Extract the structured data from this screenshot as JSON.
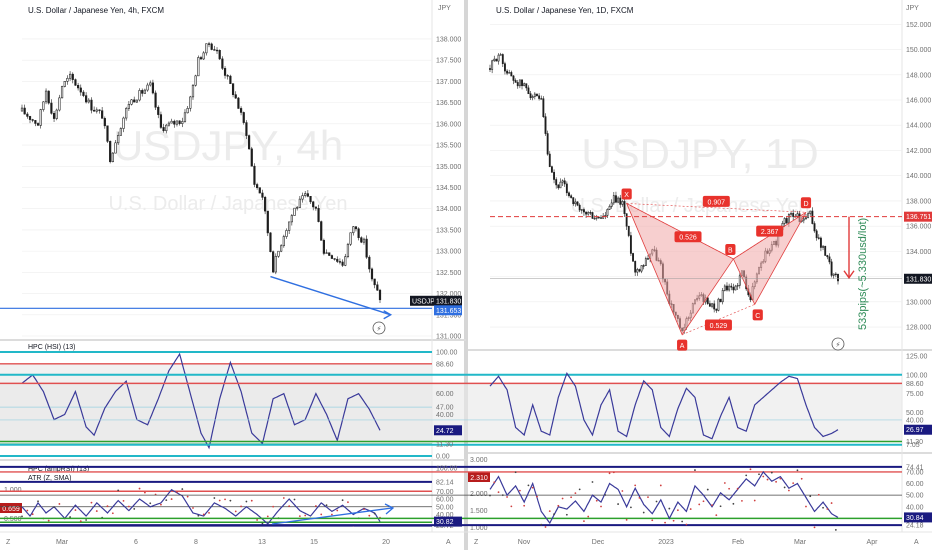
{
  "colors": {
    "up": "#4a4a4a",
    "down": "#1c1c1c",
    "blue_line": "#2f6fe0",
    "osc_line": "#3a3a9a",
    "harmonic_fill": "#f0a8a8",
    "harmonic_stroke": "#e04040",
    "label_red": "#e8322c",
    "dashed_red": "#e03a3a",
    "teal": "#22b8c8",
    "green": "#2ca02c",
    "red": "#e05050",
    "navy": "#1a1a80",
    "price_tag": "#131722",
    "grid": "#eeeeee",
    "axis_text": "#707070"
  },
  "left": {
    "header": "U.S. Dollar / Japanese Yen, 4h, FXCM",
    "watermark": "USDJPY, 4h",
    "watermark_sub": "U.S. Dollar / Japanese Yen",
    "currency": "JPY",
    "osc1_title": "HPC (HSI) (13)",
    "osc2_title": "HPC (ampRSI) (13)",
    "osc2_subtitle": "ATR (Z, SMA)",
    "osc2_left_tick": "1.000",
    "osc2_left_tick2": "0.500",
    "osc2_left_badge": "0.659",
    "symbol_tag": "USDJPY",
    "last_price": "131.830",
    "line_price": "131.653",
    "x_labels": [
      "Mar",
      "6",
      "8",
      "13",
      "15",
      "20"
    ],
    "corner_left": "Z",
    "corner_right": "A",
    "gear": "⚙"
  },
  "right": {
    "header": "U.S. Dollar / Japanese Yen, 1D, FXCM",
    "watermark": "USDJPY, 1D",
    "watermark_sub": "U.S. Dollar / Japanese Yen",
    "currency": "JPY",
    "last_price": "131.830",
    "target_price": "136.751",
    "pips_text": "533pips(~5.330usd/lot)",
    "pattern_points": [
      "X",
      "A",
      "B",
      "C",
      "D"
    ],
    "ratios": [
      "0.907",
      "0.526",
      "0.529",
      "2.367"
    ],
    "osc2_left_ticks": [
      "3.000",
      "2.500",
      "2.000",
      "1.500",
      "1.000"
    ],
    "osc2_left_badge": "2.310",
    "x_labels": [
      "Nov",
      "Dec",
      "2023",
      "Feb",
      "Mar",
      "Apr"
    ],
    "corner_left": "Z",
    "corner_right": "A"
  },
  "chart_data": [
    {
      "type": "candlestick",
      "title": "U.S. Dollar / Japanese Yen, 4h, FXCM",
      "ylabel": "JPY",
      "ylim": [
        131.0,
        138.4
      ],
      "yticks": [
        131.0,
        131.5,
        132.0,
        132.5,
        133.0,
        133.5,
        134.0,
        134.5,
        135.0,
        135.5,
        136.0,
        136.5,
        137.0,
        137.5,
        138.0
      ],
      "x_ticks": [
        "Mar",
        "6",
        "8",
        "13",
        "15",
        "20"
      ],
      "price_anchors": [
        [
          0,
          136.3
        ],
        [
          6,
          136.0
        ],
        [
          9,
          136.8
        ],
        [
          12,
          136.1
        ],
        [
          15,
          136.9
        ],
        [
          18,
          137.1
        ],
        [
          22,
          136.8
        ],
        [
          26,
          136.4
        ],
        [
          30,
          136.2
        ],
        [
          33,
          135.2
        ],
        [
          36,
          135.8
        ],
        [
          40,
          136.5
        ],
        [
          44,
          136.7
        ],
        [
          48,
          136.9
        ],
        [
          52,
          135.9
        ],
        [
          56,
          136.0
        ],
        [
          60,
          136.1
        ],
        [
          63,
          136.6
        ],
        [
          66,
          137.5
        ],
        [
          70,
          137.9
        ],
        [
          73,
          137.7
        ],
        [
          76,
          137.2
        ],
        [
          80,
          136.6
        ],
        [
          84,
          135.8
        ],
        [
          87,
          134.6
        ],
        [
          90,
          134.3
        ],
        [
          94,
          132.6
        ],
        [
          98,
          133.4
        ],
        [
          102,
          134.0
        ],
        [
          106,
          134.3
        ],
        [
          110,
          134.0
        ],
        [
          113,
          133.0
        ],
        [
          116,
          132.9
        ],
        [
          120,
          132.7
        ],
        [
          124,
          133.6
        ],
        [
          128,
          133.2
        ],
        [
          131,
          132.3
        ],
        [
          134,
          131.9
        ]
      ],
      "trendline": {
        "from": [
          93,
          132.4
        ],
        "to": [
          138,
          131.5
        ]
      },
      "horizontal_line": 131.653,
      "last_price": 131.83
    },
    {
      "type": "line",
      "title": "HPC (HSI) (13)",
      "ylim": [
        0,
        100
      ],
      "levels": [
        {
          "label": "100.00",
          "value": 100
        },
        {
          "label": "88.60",
          "value": 88.6
        },
        {
          "label": "47.00",
          "value": 47
        },
        {
          "label": "11.30",
          "value": 11.3
        },
        {
          "label": "0.00",
          "value": 0
        }
      ],
      "right_ticks": [
        100,
        88.6,
        60,
        47,
        40,
        24.72,
        11.3,
        0
      ],
      "last_value": 24.72,
      "anchors": [
        [
          0,
          70
        ],
        [
          4,
          78
        ],
        [
          8,
          62
        ],
        [
          12,
          35
        ],
        [
          16,
          40
        ],
        [
          20,
          62
        ],
        [
          24,
          28
        ],
        [
          27,
          20
        ],
        [
          31,
          46
        ],
        [
          35,
          62
        ],
        [
          39,
          72
        ],
        [
          43,
          35
        ],
        [
          47,
          30
        ],
        [
          51,
          55
        ],
        [
          55,
          82
        ],
        [
          59,
          98
        ],
        [
          63,
          60
        ],
        [
          67,
          22
        ],
        [
          70,
          8
        ],
        [
          74,
          55
        ],
        [
          78,
          90
        ],
        [
          82,
          62
        ],
        [
          86,
          22
        ],
        [
          90,
          12
        ],
        [
          94,
          55
        ],
        [
          98,
          60
        ],
        [
          102,
          30
        ],
        [
          106,
          35
        ],
        [
          110,
          60
        ],
        [
          114,
          40
        ],
        [
          118,
          15
        ],
        [
          122,
          55
        ],
        [
          126,
          60
        ],
        [
          130,
          45
        ],
        [
          134,
          24.72
        ]
      ]
    },
    {
      "type": "line",
      "title": "HPC (ampRSI) (13)",
      "ylim": [
        20,
        100
      ],
      "levels": [
        {
          "label": "82.14",
          "value": 82.14
        },
        {
          "label": "70.00",
          "value": 70
        },
        {
          "label": "50.00",
          "value": 50
        },
        {
          "label": "30.00",
          "value": 30
        },
        {
          "label": "25.72",
          "value": 25.72
        }
      ],
      "right_ticks": [
        100,
        82.14,
        70,
        60,
        50,
        40,
        30.82,
        30,
        25.72
      ],
      "last_value": 30.82,
      "anchors": [
        [
          0,
          50
        ],
        [
          3,
          38
        ],
        [
          6,
          55
        ],
        [
          9,
          42
        ],
        [
          12,
          50
        ],
        [
          16,
          35
        ],
        [
          20,
          52
        ],
        [
          24,
          38
        ],
        [
          28,
          55
        ],
        [
          32,
          42
        ],
        [
          36,
          58
        ],
        [
          40,
          45
        ],
        [
          44,
          60
        ],
        [
          48,
          50
        ],
        [
          52,
          55
        ],
        [
          56,
          72
        ],
        [
          60,
          64
        ],
        [
          64,
          42
        ],
        [
          68,
          38
        ],
        [
          72,
          55
        ],
        [
          76,
          48
        ],
        [
          80,
          38
        ],
        [
          84,
          50
        ],
        [
          88,
          40
        ],
        [
          92,
          28
        ],
        [
          96,
          45
        ],
        [
          100,
          60
        ],
        [
          104,
          45
        ],
        [
          108,
          38
        ],
        [
          112,
          55
        ],
        [
          116,
          44
        ],
        [
          120,
          52
        ],
        [
          124,
          40
        ],
        [
          128,
          48
        ],
        [
          132,
          42
        ],
        [
          134,
          30.82
        ]
      ]
    },
    {
      "type": "candlestick",
      "title": "U.S. Dollar / Japanese Yen, 1D, FXCM",
      "ylabel": "JPY",
      "ylim": [
        126.5,
        152.5
      ],
      "yticks": [
        128,
        130,
        132,
        134,
        136,
        138,
        140,
        142,
        144,
        146,
        148,
        150,
        152
      ],
      "x_ticks": [
        "Nov",
        "Dec",
        "2023",
        "Feb",
        "Mar",
        "Apr"
      ],
      "price_anchors": [
        [
          0,
          148.5
        ],
        [
          4,
          149.7
        ],
        [
          8,
          148.2
        ],
        [
          12,
          147.5
        ],
        [
          16,
          147.1
        ],
        [
          20,
          146.3
        ],
        [
          24,
          145.8
        ],
        [
          28,
          140.4
        ],
        [
          31,
          139.2
        ],
        [
          34,
          139.3
        ],
        [
          38,
          138.3
        ],
        [
          42,
          137.1
        ],
        [
          46,
          137.0
        ],
        [
          50,
          136.6
        ],
        [
          54,
          136.8
        ],
        [
          58,
          138.1
        ],
        [
          62,
          137.9
        ],
        [
          65,
          135.0
        ],
        [
          68,
          132.4
        ],
        [
          72,
          133.1
        ],
        [
          76,
          134.2
        ],
        [
          80,
          132.8
        ],
        [
          84,
          130.1
        ],
        [
          88,
          128.4
        ],
        [
          90,
          127.4
        ],
        [
          94,
          129.4
        ],
        [
          98,
          130.6
        ],
        [
          102,
          129.9
        ],
        [
          106,
          129.6
        ],
        [
          110,
          131.0
        ],
        [
          114,
          130.9
        ],
        [
          118,
          132.3
        ],
        [
          122,
          130.4
        ],
        [
          126,
          132.8
        ],
        [
          130,
          134.1
        ],
        [
          134,
          134.8
        ],
        [
          138,
          136.4
        ],
        [
          142,
          137.0
        ],
        [
          146,
          136.4
        ],
        [
          150,
          136.9
        ],
        [
          153,
          135.2
        ],
        [
          157,
          133.8
        ],
        [
          160,
          132.4
        ],
        [
          163,
          131.83
        ]
      ],
      "harmonic_pattern": {
        "X": [
          64,
          137.8
        ],
        "A": [
          90,
          127.4
        ],
        "B": [
          114,
          133.4
        ],
        "C": [
          124,
          129.8
        ],
        "D": [
          148,
          137.1
        ],
        "ratios": {
          "XB": 0.526,
          "AC": 0.529,
          "XD": 0.907,
          "BD": 2.367
        }
      },
      "target_line": 136.751,
      "last_price": 131.83,
      "annotation": "533pips(~5.330usd/lot)"
    },
    {
      "type": "line",
      "title": "",
      "ylim": [
        0,
        125
      ],
      "levels": [
        {
          "label": "100.00",
          "value": 100
        },
        {
          "label": "88.60",
          "value": 88.6
        },
        {
          "label": "40.00",
          "value": 40
        },
        {
          "label": "11.30",
          "value": 11.3
        },
        {
          "label": "7.05",
          "value": 7.05
        }
      ],
      "right_ticks": [
        125,
        100,
        88.6,
        75,
        50,
        40,
        26.97,
        25,
        11.3,
        7.05
      ],
      "last_value": 26.97,
      "anchors": [
        [
          0,
          85
        ],
        [
          4,
          98
        ],
        [
          8,
          80
        ],
        [
          12,
          30
        ],
        [
          16,
          20
        ],
        [
          20,
          60
        ],
        [
          24,
          25
        ],
        [
          28,
          20
        ],
        [
          32,
          70
        ],
        [
          36,
          102
        ],
        [
          40,
          85
        ],
        [
          44,
          40
        ],
        [
          48,
          20
        ],
        [
          52,
          60
        ],
        [
          56,
          80
        ],
        [
          60,
          25
        ],
        [
          64,
          18
        ],
        [
          68,
          60
        ],
        [
          72,
          92
        ],
        [
          76,
          80
        ],
        [
          80,
          30
        ],
        [
          84,
          18
        ],
        [
          88,
          55
        ],
        [
          92,
          82
        ],
        [
          96,
          70
        ],
        [
          100,
          20
        ],
        [
          104,
          15
        ],
        [
          108,
          45
        ],
        [
          112,
          70
        ],
        [
          116,
          30
        ],
        [
          120,
          25
        ],
        [
          124,
          60
        ],
        [
          128,
          70
        ],
        [
          132,
          80
        ],
        [
          136,
          90
        ],
        [
          140,
          98
        ],
        [
          144,
          95
        ],
        [
          148,
          60
        ],
        [
          152,
          30
        ],
        [
          156,
          18
        ],
        [
          160,
          22
        ],
        [
          163,
          26.97
        ]
      ]
    },
    {
      "type": "line",
      "title": "",
      "ylim": [
        20,
        82
      ],
      "levels": [
        {
          "label": "74.41",
          "value": 74.41
        },
        {
          "label": "70.00",
          "value": 70
        },
        {
          "label": "50.00",
          "value": 50
        },
        {
          "label": "30.00",
          "value": 30
        },
        {
          "label": "24.18",
          "value": 24.18
        }
      ],
      "right_ticks": [
        74.41,
        70,
        60,
        50,
        40,
        30.84,
        30,
        28.42,
        24.18
      ],
      "last_value": 30.84,
      "anchors": [
        [
          0,
          55
        ],
        [
          4,
          66
        ],
        [
          8,
          50
        ],
        [
          12,
          58
        ],
        [
          16,
          44
        ],
        [
          20,
          60
        ],
        [
          24,
          36
        ],
        [
          28,
          26
        ],
        [
          32,
          40
        ],
        [
          36,
          38
        ],
        [
          40,
          45
        ],
        [
          44,
          36
        ],
        [
          48,
          50
        ],
        [
          52,
          44
        ],
        [
          56,
          60
        ],
        [
          60,
          55
        ],
        [
          64,
          40
        ],
        [
          68,
          56
        ],
        [
          72,
          42
        ],
        [
          76,
          34
        ],
        [
          80,
          46
        ],
        [
          84,
          30
        ],
        [
          88,
          44
        ],
        [
          92,
          36
        ],
        [
          96,
          58
        ],
        [
          100,
          50
        ],
        [
          104,
          40
        ],
        [
          108,
          52
        ],
        [
          112,
          46
        ],
        [
          116,
          55
        ],
        [
          120,
          64
        ],
        [
          124,
          58
        ],
        [
          128,
          70
        ],
        [
          132,
          62
        ],
        [
          136,
          66
        ],
        [
          140,
          56
        ],
        [
          144,
          60
        ],
        [
          148,
          48
        ],
        [
          152,
          36
        ],
        [
          156,
          44
        ],
        [
          160,
          34
        ],
        [
          163,
          30.84
        ]
      ]
    }
  ]
}
